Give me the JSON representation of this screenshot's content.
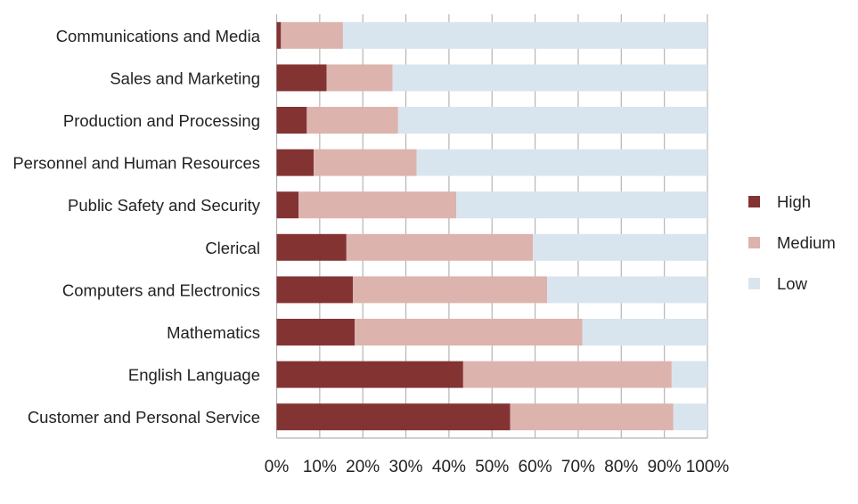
{
  "chart_data": {
    "type": "bar",
    "orientation": "horizontal",
    "stacked": true,
    "percent_stacked": true,
    "categories": [
      "Communications and Media",
      "Sales and Marketing",
      "Production and Processing",
      "Personnel and Human Resources",
      "Public Safety and Security",
      "Clerical",
      "Computers and Electronics",
      "Mathematics",
      "English Language",
      "Customer and Personal Service"
    ],
    "series": [
      {
        "name": "High",
        "color": "#843333",
        "values": [
          1.0,
          11.6,
          7.0,
          8.6,
          5.1,
          16.2,
          17.7,
          18.1,
          43.3,
          54.2
        ]
      },
      {
        "name": "Medium",
        "color": "#ddb3ae",
        "values": [
          14.4,
          15.3,
          21.2,
          23.9,
          36.6,
          43.3,
          45.1,
          52.9,
          48.4,
          37.9
        ]
      },
      {
        "name": "Low",
        "color": "#d9e5ee",
        "values": [
          84.6,
          73.1,
          71.8,
          67.5,
          58.3,
          40.5,
          37.2,
          29.0,
          8.3,
          7.9
        ]
      }
    ],
    "xlim": [
      0,
      100
    ],
    "xticks": [
      "0%",
      "10%",
      "20%",
      "30%",
      "40%",
      "50%",
      "60%",
      "70%",
      "80%",
      "90%",
      "100%"
    ],
    "title": "",
    "xlabel": "",
    "ylabel": "",
    "grid": "vertical",
    "legend": "right"
  }
}
